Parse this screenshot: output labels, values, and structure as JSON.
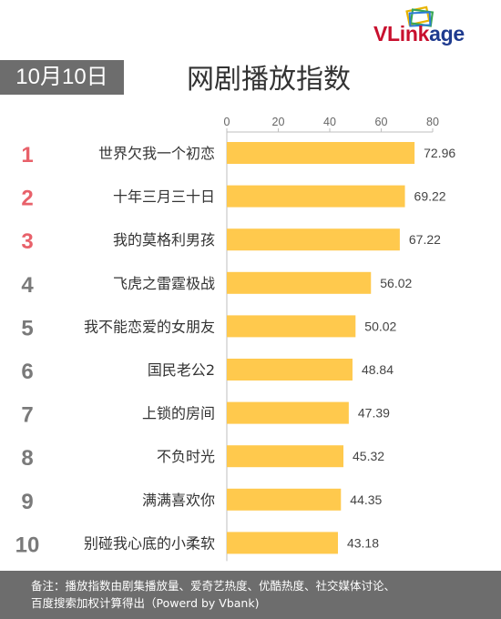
{
  "logo": {
    "text_part1": "VLink",
    "text_part2": "age"
  },
  "date_badge": "10月10日",
  "title": "网剧播放指数",
  "chart_data": {
    "type": "bar",
    "orientation": "horizontal",
    "title": "网剧播放指数",
    "categories": [
      "世界欠我一个初恋",
      "十年三月三十日",
      "我的莫格利男孩",
      "飞虎之雷霆极战",
      "我不能恋爱的女朋友",
      "国民老公2",
      "上锁的房间",
      "不负时光",
      "满满喜欢你",
      "别碰我心底的小柔软"
    ],
    "ranks": [
      "1",
      "2",
      "3",
      "4",
      "5",
      "6",
      "7",
      "8",
      "9",
      "10"
    ],
    "values": [
      72.96,
      69.22,
      67.22,
      56.02,
      50.02,
      48.84,
      47.39,
      45.32,
      44.35,
      43.18
    ],
    "value_labels": [
      "72.96",
      "69.22",
      "67.22",
      "56.02",
      "50.02",
      "48.84",
      "47.39",
      "45.32",
      "44.35",
      "43.18"
    ],
    "xlim": [
      0,
      80
    ],
    "xticks": [
      "0",
      "20",
      "40",
      "60",
      "80"
    ],
    "grid": false,
    "colors": {
      "bar": "#ffc94d",
      "rank_top3": "#e8616a",
      "rank_other": "#7a7a7a",
      "axis": "#bfbfbf"
    }
  },
  "footer": {
    "line1": "备注：播放指数由剧集播放量、爱奇艺热度、优酷热度、社交媒体讨论、",
    "line2": "百度搜索加权计算得出（Powerd by Vbank)"
  }
}
